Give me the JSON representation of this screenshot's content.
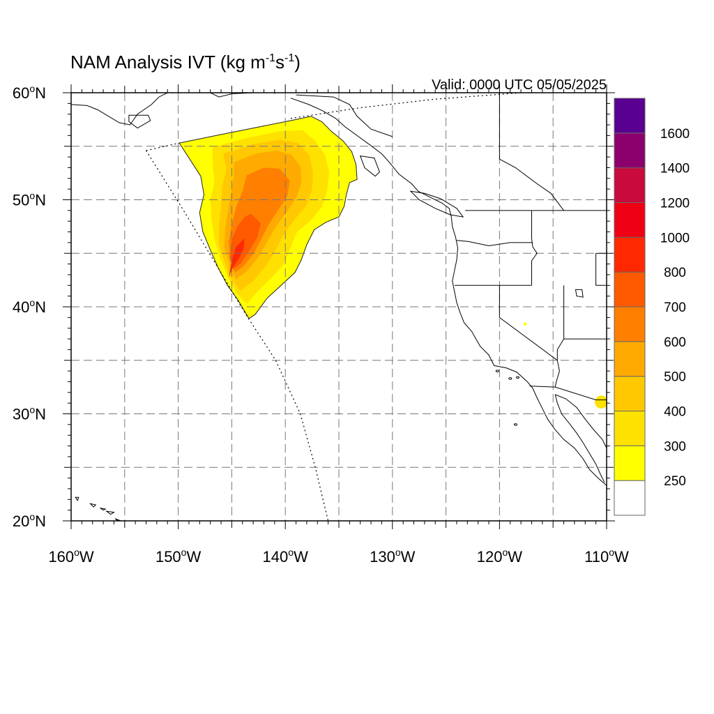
{
  "title": {
    "main": "NAM Analysis IVT (kg m",
    "sup1": "-1",
    "mid": "s",
    "sup2": "-1",
    "end": ")"
  },
  "valid_label": "Valid: 0000 UTC 05/05/2025",
  "axes": {
    "lon_range": [
      -160,
      -110
    ],
    "lat_range": [
      20,
      60
    ],
    "lon_ticks": [
      {
        "value": -160,
        "label": "160°W"
      },
      {
        "value": -150,
        "label": "150°W"
      },
      {
        "value": -140,
        "label": "140°W"
      },
      {
        "value": -130,
        "label": "130°W"
      },
      {
        "value": -120,
        "label": "120°W"
      },
      {
        "value": -110,
        "label": "110°W"
      }
    ],
    "lat_ticks": [
      {
        "value": 20,
        "label": "20°N"
      },
      {
        "value": 30,
        "label": "30°N"
      },
      {
        "value": 40,
        "label": "40°N"
      },
      {
        "value": 50,
        "label": "50°N"
      },
      {
        "value": 60,
        "label": "60°N"
      }
    ],
    "gridlines": "dashed",
    "grid_step_deg": 5
  },
  "colorbar": {
    "placement": "right",
    "levels": [
      {
        "label": "",
        "color": "#ffffff"
      },
      {
        "label": "250",
        "color": "#ffff00"
      },
      {
        "label": "300",
        "color": "#ffe100"
      },
      {
        "label": "400",
        "color": "#ffc800"
      },
      {
        "label": "500",
        "color": "#ffaa00"
      },
      {
        "label": "600",
        "color": "#ff7f00"
      },
      {
        "label": "700",
        "color": "#ff5a00"
      },
      {
        "label": "800",
        "color": "#ff2800"
      },
      {
        "label": "1000",
        "color": "#f00014"
      },
      {
        "label": "1200",
        "color": "#c80a3c"
      },
      {
        "label": "1400",
        "color": "#8c006e"
      },
      {
        "label": "1600",
        "color": "#5a0090"
      }
    ]
  },
  "ivt_regions": [
    {
      "level": 1,
      "color": "#ffff00",
      "points": [
        [
          -149.9,
          55.3
        ],
        [
          -146,
          56.1
        ],
        [
          -142,
          56.9
        ],
        [
          -139,
          57.5
        ],
        [
          -137.6,
          57.8
        ],
        [
          -136.6,
          57.3
        ],
        [
          -135.7,
          56.4
        ],
        [
          -134.6,
          55.5
        ],
        [
          -133.8,
          54.5
        ],
        [
          -133.4,
          53.3
        ],
        [
          -133.3,
          51.9
        ],
        [
          -134.0,
          51.6
        ],
        [
          -134.3,
          50.5
        ],
        [
          -134.5,
          49.4
        ],
        [
          -135.0,
          48.4
        ],
        [
          -136.2,
          47.9
        ],
        [
          -137.3,
          47.2
        ],
        [
          -138.0,
          45.8
        ],
        [
          -138.5,
          44.4
        ],
        [
          -139.1,
          43.2
        ],
        [
          -140.4,
          42.0
        ],
        [
          -141.7,
          40.8
        ],
        [
          -142.8,
          39.3
        ],
        [
          -143.4,
          38.9
        ],
        [
          -144.4,
          40.6
        ],
        [
          -145.4,
          42.0
        ],
        [
          -146.3,
          43.7
        ],
        [
          -147.0,
          45.3
        ],
        [
          -147.7,
          47.0
        ],
        [
          -148.0,
          48.8
        ],
        [
          -147.6,
          50.5
        ],
        [
          -147.9,
          52.2
        ],
        [
          -148.8,
          53.6
        ],
        [
          -149.9,
          55.3
        ]
      ]
    },
    {
      "level": 2,
      "color": "#ffe100",
      "points": [
        [
          -146.8,
          54.9
        ],
        [
          -143.5,
          55.8
        ],
        [
          -140.5,
          56.4
        ],
        [
          -138.4,
          56.5
        ],
        [
          -137.2,
          55.5
        ],
        [
          -136.3,
          54.2
        ],
        [
          -135.9,
          52.6
        ],
        [
          -136.1,
          50.8
        ],
        [
          -136.6,
          49.3
        ],
        [
          -137.6,
          48.1
        ],
        [
          -138.9,
          47.0
        ],
        [
          -139.6,
          45.3
        ],
        [
          -140.2,
          43.9
        ],
        [
          -141.4,
          42.6
        ],
        [
          -142.7,
          41.3
        ],
        [
          -143.6,
          40.3
        ],
        [
          -144.6,
          41.3
        ],
        [
          -145.4,
          42.9
        ],
        [
          -146.1,
          44.5
        ],
        [
          -146.6,
          46.3
        ],
        [
          -146.9,
          48.2
        ],
        [
          -147.0,
          50.0
        ],
        [
          -146.6,
          51.7
        ],
        [
          -146.8,
          53.4
        ],
        [
          -146.8,
          54.9
        ]
      ]
    },
    {
      "level": 3,
      "color": "#ffc800",
      "points": [
        [
          -145.8,
          54.3
        ],
        [
          -143.0,
          55.2
        ],
        [
          -140.5,
          55.6
        ],
        [
          -138.8,
          55.3
        ],
        [
          -137.8,
          54.2
        ],
        [
          -137.4,
          52.6
        ],
        [
          -137.5,
          51.0
        ],
        [
          -138.0,
          49.5
        ],
        [
          -139.1,
          48.2
        ],
        [
          -140.2,
          46.7
        ],
        [
          -141.0,
          45.1
        ],
        [
          -141.9,
          43.7
        ],
        [
          -143.0,
          42.4
        ],
        [
          -144.2,
          41.5
        ],
        [
          -145.0,
          42.5
        ],
        [
          -145.6,
          44.0
        ],
        [
          -146.2,
          45.7
        ],
        [
          -146.2,
          47.6
        ],
        [
          -146.0,
          49.4
        ],
        [
          -145.9,
          51.2
        ],
        [
          -145.5,
          52.9
        ],
        [
          -145.8,
          54.3
        ]
      ]
    },
    {
      "level": 4,
      "color": "#ffaa00",
      "points": [
        [
          -144.8,
          53.5
        ],
        [
          -142.8,
          54.3
        ],
        [
          -140.8,
          54.6
        ],
        [
          -139.4,
          54.2
        ],
        [
          -138.6,
          53.1
        ],
        [
          -138.5,
          51.6
        ],
        [
          -139.0,
          50.1
        ],
        [
          -140.0,
          48.7
        ],
        [
          -141.0,
          47.3
        ],
        [
          -141.8,
          45.9
        ],
        [
          -142.6,
          44.5
        ],
        [
          -143.6,
          43.3
        ],
        [
          -144.6,
          42.6
        ],
        [
          -145.2,
          43.9
        ],
        [
          -145.7,
          45.5
        ],
        [
          -145.6,
          47.4
        ],
        [
          -145.3,
          49.2
        ],
        [
          -145.0,
          51.0
        ],
        [
          -144.8,
          52.3
        ],
        [
          -144.8,
          53.5
        ]
      ]
    },
    {
      "level": 5,
      "color": "#ff7f00",
      "points": [
        [
          -143.6,
          52.3
        ],
        [
          -142.0,
          53.0
        ],
        [
          -140.5,
          52.9
        ],
        [
          -139.6,
          51.8
        ],
        [
          -139.8,
          50.4
        ],
        [
          -140.7,
          49.0
        ],
        [
          -141.6,
          47.6
        ],
        [
          -142.3,
          46.2
        ],
        [
          -143.0,
          44.9
        ],
        [
          -143.9,
          43.8
        ],
        [
          -144.7,
          43.2
        ],
        [
          -145.1,
          44.4
        ],
        [
          -145.3,
          46.0
        ],
        [
          -145.0,
          47.7
        ],
        [
          -144.6,
          49.3
        ],
        [
          -144.0,
          50.8
        ],
        [
          -143.6,
          52.3
        ]
      ]
    },
    {
      "level": 6,
      "color": "#ff5a00",
      "points": [
        [
          -143.2,
          48.7
        ],
        [
          -142.3,
          47.8
        ],
        [
          -142.6,
          46.5
        ],
        [
          -143.4,
          45.2
        ],
        [
          -144.2,
          44.0
        ],
        [
          -144.9,
          43.5
        ],
        [
          -145.2,
          44.6
        ],
        [
          -145.0,
          46.2
        ],
        [
          -144.5,
          47.5
        ],
        [
          -143.8,
          48.4
        ],
        [
          -143.2,
          48.7
        ]
      ]
    },
    {
      "level": 7,
      "color": "#ff2800",
      "points": [
        [
          -143.8,
          46.4
        ],
        [
          -143.9,
          45.4
        ],
        [
          -144.4,
          44.4
        ],
        [
          -144.9,
          43.7
        ],
        [
          -145.3,
          42.7
        ],
        [
          -145.0,
          44.3
        ],
        [
          -144.6,
          45.6
        ],
        [
          -143.8,
          46.4
        ]
      ]
    }
  ],
  "small_blobs": [
    {
      "color": "#ffe100",
      "center": [
        -110.5,
        31.1
      ],
      "radius_deg": 0.6
    },
    {
      "color": "#ffff00",
      "center": [
        -117.6,
        38.4
      ],
      "radius_deg": 0.15
    }
  ],
  "boundary_dotted": [
    [
      -153.0,
      54.6
    ],
    [
      -149.9,
      55.3
    ]
  ],
  "domain_edge_dotted": [
    [
      [
        -153.0,
        54.6
      ],
      [
        -149.5,
        49.0
      ],
      [
        -146.5,
        44.0
      ],
      [
        -143.7,
        39.3
      ],
      [
        -140.9,
        35.0
      ],
      [
        -138.6,
        30.0
      ],
      [
        -137.2,
        25.0
      ],
      [
        -136.0,
        20.0
      ]
    ],
    [
      [
        -139.5,
        57.6
      ],
      [
        -133.0,
        58.6
      ],
      [
        -126.0,
        59.4
      ],
      [
        -118.0,
        60.0
      ]
    ]
  ]
}
